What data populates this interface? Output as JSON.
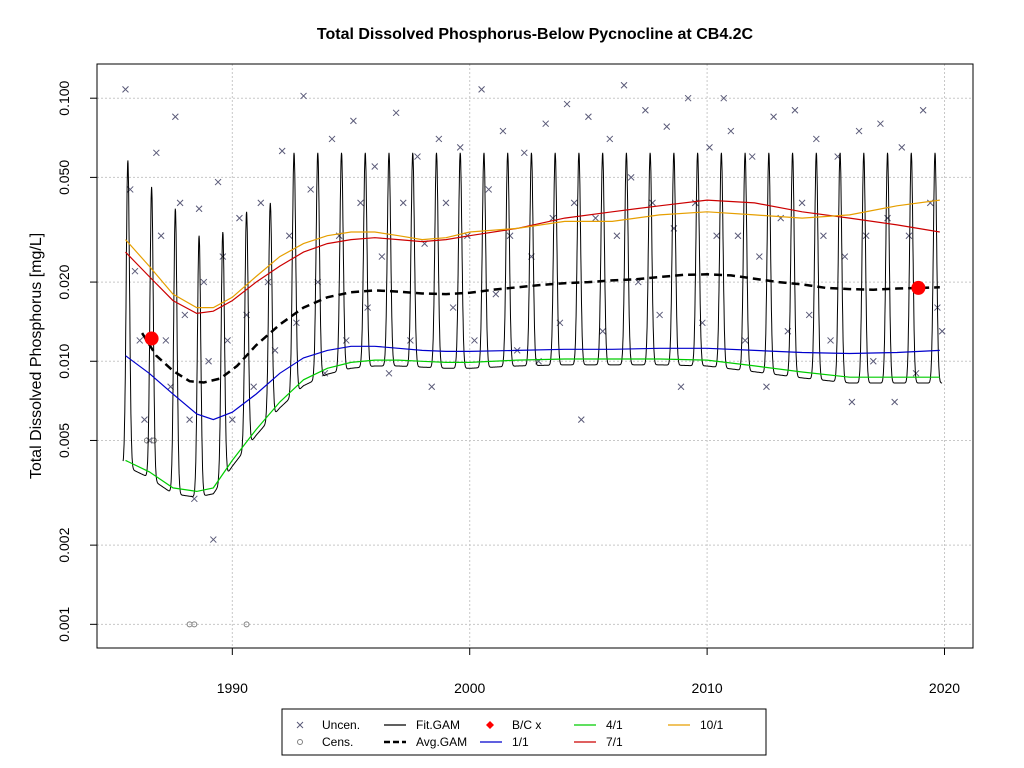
{
  "chart_data": {
    "type": "line",
    "title": "Total Dissolved Phosphorus-Below Pycnocline at CB4.2C",
    "xlabel": "",
    "ylabel": "Total Dissolved Phosphorus [mg/L]",
    "x_range": [
      1984.3,
      2021.2
    ],
    "y_range_log10": [
      -3.09,
      -0.87
    ],
    "y_scale": "log",
    "grid": true,
    "x_ticks": [
      1990,
      2000,
      2010,
      2020
    ],
    "x_tick_labels": [
      "1990",
      "2000",
      "2010",
      "2020"
    ],
    "y_ticks": [
      0.001,
      0.002,
      0.005,
      0.01,
      0.02,
      0.05,
      0.1
    ],
    "y_tick_labels": [
      "0.001",
      "0.002",
      "0.005",
      "0.010",
      "0.020",
      "0.050",
      "0.100"
    ],
    "legend_position": "bottom",
    "legend": [
      {
        "label": "Uncen.",
        "kind": "x-marker",
        "color": "#5a5a78"
      },
      {
        "label": "Cens.",
        "kind": "circle-marker",
        "color": "#808080"
      },
      {
        "label": "Fit.GAM",
        "kind": "line",
        "color": "#000000"
      },
      {
        "label": "Avg.GAM",
        "kind": "dashed-line",
        "color": "#000000"
      },
      {
        "label": "B/C x",
        "kind": "diamond",
        "color": "#ff0000"
      },
      {
        "label": "1/1",
        "kind": "line",
        "color": "#0000cc"
      },
      {
        "label": "4/1",
        "kind": "line",
        "color": "#00cc00"
      },
      {
        "label": "7/1",
        "kind": "line",
        "color": "#cc0000"
      },
      {
        "label": "10/1",
        "kind": "line",
        "color": "#e69f00"
      }
    ],
    "avg_gam": {
      "x": [
        1986.2,
        1986.8,
        1987.5,
        1988.2,
        1988.8,
        1989.5,
        1990.2,
        1991.0,
        1992.0,
        1993.0,
        1994.0,
        1995.0,
        1996.0,
        1997.0,
        1998.0,
        1999.0,
        2000.0,
        2001.0,
        2002.0,
        2003.0,
        2004.0,
        2005.0,
        2006.0,
        2007.0,
        2008.0,
        2009.0,
        2010.0,
        2011.0,
        2012.0,
        2013.0,
        2014.0,
        2015.0,
        2016.0,
        2017.0,
        2018.0,
        2019.0,
        2019.8
      ],
      "y": [
        0.0128,
        0.0105,
        0.0092,
        0.0084,
        0.0083,
        0.0086,
        0.0096,
        0.0115,
        0.0138,
        0.016,
        0.0175,
        0.0183,
        0.0186,
        0.0184,
        0.0181,
        0.018,
        0.0182,
        0.0187,
        0.0191,
        0.0195,
        0.0198,
        0.02,
        0.0203,
        0.0205,
        0.0209,
        0.0213,
        0.0214,
        0.0212,
        0.0206,
        0.02,
        0.0196,
        0.019,
        0.0188,
        0.0187,
        0.0189,
        0.019,
        0.0191
      ]
    },
    "series_1_1": {
      "x": [
        1985.5,
        1986.5,
        1987.5,
        1988.5,
        1989.2,
        1990.0,
        1991.0,
        1992.0,
        1993.0,
        1994.0,
        1995.0,
        1996.0,
        1997.0,
        1998.0,
        1999.0,
        2000.0,
        2002.0,
        2004.0,
        2006.0,
        2008.0,
        2010.0,
        2012.0,
        2014.0,
        2016.0,
        2018.0,
        2019.8
      ],
      "y": [
        0.0105,
        0.009,
        0.0075,
        0.0063,
        0.006,
        0.0064,
        0.0075,
        0.009,
        0.0103,
        0.011,
        0.0114,
        0.0114,
        0.0112,
        0.011,
        0.0109,
        0.0109,
        0.011,
        0.0111,
        0.0111,
        0.0112,
        0.0112,
        0.011,
        0.0108,
        0.0107,
        0.0108,
        0.011
      ]
    },
    "series_4_1": {
      "x": [
        1985.5,
        1986.5,
        1987.5,
        1988.5,
        1989.2,
        1990.0,
        1991.0,
        1992.0,
        1993.0,
        1994.0,
        1995.0,
        1996.0,
        1997.0,
        1998.0,
        1999.0,
        2000.0,
        2002.0,
        2004.0,
        2006.0,
        2008.0,
        2010.0,
        2012.0,
        2014.0,
        2016.0,
        2018.0,
        2019.8
      ],
      "y": [
        0.0042,
        0.0038,
        0.0033,
        0.0032,
        0.0033,
        0.0042,
        0.0055,
        0.007,
        0.0085,
        0.0094,
        0.0099,
        0.0101,
        0.0101,
        0.01,
        0.0099,
        0.0099,
        0.0101,
        0.0102,
        0.0102,
        0.0102,
        0.0101,
        0.0096,
        0.0091,
        0.0087,
        0.0087,
        0.0087
      ]
    },
    "series_7_1": {
      "x": [
        1985.5,
        1986.5,
        1987.5,
        1988.5,
        1989.2,
        1990.0,
        1991.0,
        1992.0,
        1993.0,
        1994.0,
        1995.0,
        1996.0,
        1997.0,
        1998.0,
        1999.0,
        2000.0,
        2002.0,
        2004.0,
        2006.0,
        2008.0,
        2010.0,
        2012.0,
        2014.0,
        2016.0,
        2018.0,
        2019.8
      ],
      "y": [
        0.026,
        0.021,
        0.017,
        0.0152,
        0.0155,
        0.017,
        0.02,
        0.023,
        0.026,
        0.028,
        0.029,
        0.0295,
        0.029,
        0.0285,
        0.029,
        0.03,
        0.032,
        0.035,
        0.037,
        0.039,
        0.041,
        0.04,
        0.037,
        0.035,
        0.033,
        0.031
      ]
    },
    "series_10_1": {
      "x": [
        1985.5,
        1986.5,
        1987.5,
        1988.5,
        1989.2,
        1990.0,
        1991.0,
        1992.0,
        1993.0,
        1994.0,
        1995.0,
        1996.0,
        1997.0,
        1998.0,
        1999.0,
        2000.0,
        2002.0,
        2004.0,
        2006.0,
        2008.0,
        2010.0,
        2012.0,
        2014.0,
        2016.0,
        2018.0,
        2019.8
      ],
      "y": [
        0.029,
        0.023,
        0.018,
        0.016,
        0.016,
        0.0175,
        0.021,
        0.025,
        0.028,
        0.03,
        0.031,
        0.031,
        0.03,
        0.029,
        0.0295,
        0.031,
        0.032,
        0.034,
        0.034,
        0.036,
        0.037,
        0.036,
        0.035,
        0.036,
        0.039,
        0.041
      ]
    },
    "fit_gam": {
      "start_year": 1985.4,
      "end_year": 2019.9,
      "peak_value_first_years": [
        0.058,
        0.046,
        0.038,
        0.03,
        0.031,
        0.037,
        0.04
      ],
      "peak_value_later": 0.062,
      "note_annual_cycle": true
    },
    "bc_points": {
      "x": [
        1986.6,
        2018.9
      ],
      "y": [
        0.0122,
        0.019
      ]
    },
    "uncensored_points": {
      "x": [
        1985.5,
        1985.7,
        1985.9,
        1986.1,
        1986.3,
        1986.5,
        1986.8,
        1987.0,
        1987.2,
        1987.4,
        1987.6,
        1987.8,
        1988.0,
        1988.2,
        1988.4,
        1988.6,
        1988.8,
        1989.0,
        1989.2,
        1989.4,
        1989.6,
        1989.8,
        1990.0,
        1990.3,
        1990.6,
        1990.9,
        1991.2,
        1991.5,
        1991.8,
        1992.1,
        1992.4,
        1992.7,
        1993.0,
        1993.3,
        1993.6,
        1993.9,
        1994.2,
        1994.5,
        1994.8,
        1995.1,
        1995.4,
        1995.7,
        1996.0,
        1996.3,
        1996.6,
        1996.9,
        1997.2,
        1997.5,
        1997.8,
        1998.1,
        1998.4,
        1998.7,
        1999.0,
        1999.3,
        1999.6,
        1999.9,
        2000.2,
        2000.5,
        2000.8,
        2001.1,
        2001.4,
        2001.7,
        2002.0,
        2002.3,
        2002.6,
        2002.9,
        2003.2,
        2003.5,
        2003.8,
        2004.1,
        2004.4,
        2004.7,
        2005.0,
        2005.3,
        2005.6,
        2005.9,
        2006.2,
        2006.5,
        2006.8,
        2007.1,
        2007.4,
        2007.7,
        2008.0,
        2008.3,
        2008.6,
        2008.9,
        2009.2,
        2009.5,
        2009.8,
        2010.1,
        2010.4,
        2010.7,
        2011.0,
        2011.3,
        2011.6,
        2011.9,
        2012.2,
        2012.5,
        2012.8,
        2013.1,
        2013.4,
        2013.7,
        2014.0,
        2014.3,
        2014.6,
        2014.9,
        2015.2,
        2015.5,
        2015.8,
        2016.1,
        2016.4,
        2016.7,
        2017.0,
        2017.3,
        2017.6,
        2017.9,
        2018.2,
        2018.5,
        2018.8,
        2019.1,
        2019.4,
        2019.7,
        2019.9
      ],
      "y": [
        0.108,
        0.045,
        0.022,
        0.012,
        0.006,
        0.005,
        0.062,
        0.03,
        0.012,
        0.008,
        0.085,
        0.04,
        0.015,
        0.006,
        0.003,
        0.038,
        0.02,
        0.01,
        0.0021,
        0.048,
        0.025,
        0.012,
        0.006,
        0.035,
        0.015,
        0.008,
        0.04,
        0.02,
        0.011,
        0.063,
        0.03,
        0.014,
        0.102,
        0.045,
        0.02,
        0.009,
        0.07,
        0.03,
        0.012,
        0.082,
        0.04,
        0.016,
        0.055,
        0.025,
        0.009,
        0.088,
        0.04,
        0.012,
        0.06,
        0.028,
        0.008,
        0.07,
        0.04,
        0.016,
        0.065,
        0.03,
        0.012,
        0.108,
        0.045,
        0.018,
        0.075,
        0.03,
        0.011,
        0.062,
        0.025,
        0.01,
        0.08,
        0.035,
        0.014,
        0.095,
        0.04,
        0.006,
        0.085,
        0.035,
        0.013,
        0.07,
        0.03,
        0.112,
        0.05,
        0.02,
        0.09,
        0.04,
        0.015,
        0.078,
        0.032,
        0.008,
        0.1,
        0.04,
        0.014,
        0.065,
        0.03,
        0.1,
        0.075,
        0.03,
        0.012,
        0.06,
        0.025,
        0.008,
        0.085,
        0.035,
        0.013,
        0.09,
        0.04,
        0.015,
        0.07,
        0.03,
        0.012,
        0.06,
        0.025,
        0.007,
        0.075,
        0.03,
        0.01,
        0.08,
        0.035,
        0.007,
        0.065,
        0.03,
        0.009,
        0.09,
        0.04,
        0.016,
        0.013
      ]
    },
    "censored_points": {
      "x": [
        1986.4,
        1986.7,
        1988.2,
        1988.4,
        1990.6
      ],
      "y": [
        0.005,
        0.005,
        0.001,
        0.001,
        0.001
      ]
    }
  }
}
